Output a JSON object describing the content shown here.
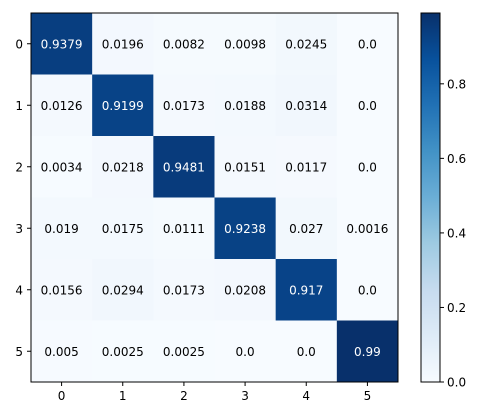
{
  "chart_data": {
    "type": "heatmap",
    "title": "",
    "xlabel": "",
    "ylabel": "",
    "x_categories": [
      "0",
      "1",
      "2",
      "3",
      "4",
      "5"
    ],
    "y_categories": [
      "0",
      "1",
      "2",
      "3",
      "4",
      "5"
    ],
    "values": [
      [
        0.9379,
        0.0196,
        0.0082,
        0.0098,
        0.0245,
        0.0
      ],
      [
        0.0126,
        0.9199,
        0.0173,
        0.0188,
        0.0314,
        0.0
      ],
      [
        0.0034,
        0.0218,
        0.9481,
        0.0151,
        0.0117,
        0.0
      ],
      [
        0.019,
        0.0175,
        0.0111,
        0.9238,
        0.027,
        0.0016
      ],
      [
        0.0156,
        0.0294,
        0.0173,
        0.0208,
        0.917,
        0.0
      ],
      [
        0.005,
        0.0025,
        0.0025,
        0.0,
        0.0,
        0.99
      ]
    ],
    "cell_labels": [
      [
        "0.9379",
        "0.0196",
        "0.0082",
        "0.0098",
        "0.0245",
        "0.0"
      ],
      [
        "0.0126",
        "0.9199",
        "0.0173",
        "0.0188",
        "0.0314",
        "0.0"
      ],
      [
        "0.0034",
        "0.0218",
        "0.9481",
        "0.0151",
        "0.0117",
        "0.0"
      ],
      [
        "0.019",
        "0.0175",
        "0.0111",
        "0.9238",
        "0.027",
        "0.0016"
      ],
      [
        "0.0156",
        "0.0294",
        "0.0173",
        "0.0208",
        "0.917",
        "0.0"
      ],
      [
        "0.005",
        "0.0025",
        "0.0025",
        "0.0",
        "0.0",
        "0.99"
      ]
    ],
    "colormap": "Blues",
    "colorbar": {
      "vmin": 0.0,
      "vmax": 0.99,
      "ticks": [
        0.0,
        0.2,
        0.4,
        0.6,
        0.8
      ],
      "tick_labels": [
        "0.0",
        "0.2",
        "0.4",
        "0.6",
        "0.8"
      ]
    },
    "grid": false,
    "legend": "colorbar-right"
  }
}
